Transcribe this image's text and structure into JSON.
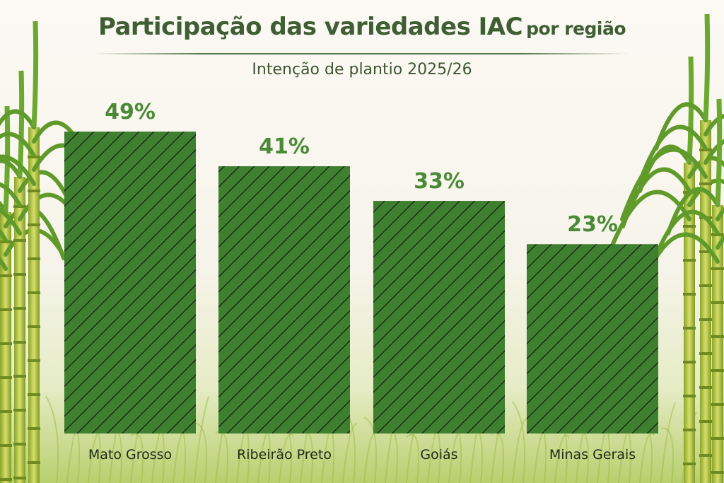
{
  "chart_data": {
    "type": "bar",
    "title": "Participação das variedades IAC",
    "title_suffix": "por região",
    "subtitle": "Intenção de plantio 2025/26",
    "categories": [
      "Mato Grosso",
      "Ribeirão Preto",
      "Goiás",
      "Minas Gerais"
    ],
    "values": [
      49,
      41,
      33,
      23
    ],
    "value_labels": [
      "49%",
      "41%",
      "33%",
      "23%"
    ],
    "unit": "%",
    "xlabel": "",
    "ylabel": "",
    "grid": false,
    "colors": {
      "bar": "#3f7f30",
      "hatch": "#10200c",
      "value_label": "#4a8a36",
      "title": "#3f5e33"
    }
  }
}
